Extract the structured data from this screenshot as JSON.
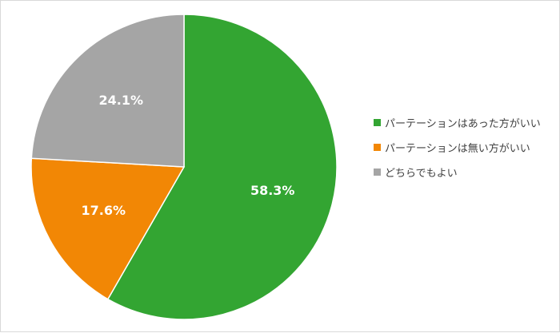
{
  "chart_data": {
    "type": "pie",
    "title": "",
    "start_angle_deg": 0,
    "direction": "clockwise",
    "legend_position": "right",
    "series": [
      {
        "name": "パーテーションはあった方がいい",
        "value": 58.3,
        "label": "58.3%",
        "color": "#33a532"
      },
      {
        "name": "パーテーションは無い方がいい",
        "value": 17.6,
        "label": "17.6%",
        "color": "#f28705"
      },
      {
        "name": "どちらでもよい",
        "value": 24.1,
        "label": "24.1%",
        "color": "#a5a5a5"
      }
    ]
  }
}
